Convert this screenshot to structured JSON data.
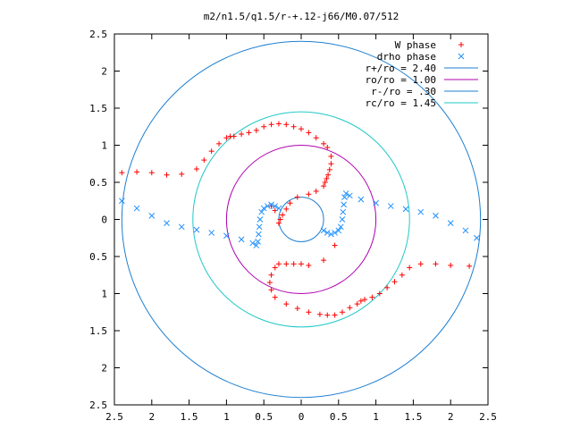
{
  "chart_data": {
    "type": "scatter",
    "title": "m2/n1.5/q1.5/r-+.12-j66/M0.07/512",
    "xlabel": "",
    "ylabel": "",
    "xlim": [
      -2.5,
      2.5
    ],
    "ylim": [
      -2.5,
      2.5
    ],
    "x_ticks": [
      -2.5,
      -2,
      -1.5,
      -1,
      -0.5,
      0,
      0.5,
      1,
      1.5,
      2,
      2.5
    ],
    "y_ticks": [
      -2.5,
      -2,
      -1.5,
      -1,
      -0.5,
      0,
      0.5,
      1,
      1.5,
      2,
      2.5
    ],
    "x_tick_labels": [
      "2.5",
      "2",
      "1.5",
      "1",
      "0.5",
      "0",
      "0.5",
      "1",
      "1.5",
      "2",
      "2.5"
    ],
    "y_tick_labels": [
      "2.5",
      "2",
      "1.5",
      "1",
      "0.5",
      "0",
      "0.5",
      "1",
      "1.5",
      "2",
      "2.5"
    ],
    "grid": false,
    "legend_position": "top-right",
    "series": [
      {
        "name": "W phase",
        "marker": "+",
        "color": "#ff0000",
        "x": [
          -2.4,
          -2.2,
          -2.0,
          -1.8,
          -1.6,
          -1.4,
          -1.3,
          -1.2,
          -1.1,
          -1.0,
          -0.95,
          -0.9,
          -0.8,
          -0.7,
          -0.6,
          -0.5,
          -0.4,
          -0.3,
          -0.2,
          -0.1,
          0.0,
          0.1,
          0.2,
          0.3,
          0.35,
          0.4,
          0.4,
          0.38,
          0.36,
          0.34,
          0.32,
          0.3,
          0.2,
          0.1,
          -0.05,
          -0.15,
          -0.2,
          -0.25,
          -0.28,
          -0.3,
          -0.35,
          -0.4,
          2.25,
          2.0,
          1.8,
          1.6,
          1.45,
          1.35,
          1.25,
          1.15,
          1.05,
          0.95,
          0.85,
          0.8,
          0.75,
          0.65,
          0.55,
          0.45,
          0.35,
          0.25,
          0.1,
          -0.05,
          -0.2,
          -0.35,
          -0.4,
          -0.42,
          -0.4,
          -0.35,
          -0.3,
          -0.2,
          -0.1,
          0.0,
          0.1,
          0.3,
          0.45
        ],
        "y": [
          0.63,
          0.64,
          0.63,
          0.6,
          0.61,
          0.68,
          0.8,
          0.92,
          1.02,
          1.1,
          1.12,
          1.12,
          1.15,
          1.17,
          1.2,
          1.25,
          1.28,
          1.29,
          1.28,
          1.25,
          1.22,
          1.17,
          1.1,
          1.02,
          0.97,
          0.85,
          0.75,
          0.67,
          0.6,
          0.55,
          0.5,
          0.45,
          0.38,
          0.34,
          0.3,
          0.22,
          0.14,
          0.06,
          0.0,
          -0.05,
          0.12,
          0.18,
          -0.63,
          -0.62,
          -0.6,
          -0.6,
          -0.65,
          -0.75,
          -0.84,
          -0.92,
          -1.0,
          -1.05,
          -1.08,
          -1.1,
          -1.14,
          -1.19,
          -1.25,
          -1.29,
          -1.29,
          -1.28,
          -1.25,
          -1.2,
          -1.14,
          -1.05,
          -0.95,
          -0.85,
          -0.75,
          -0.65,
          -0.6,
          -0.6,
          -0.6,
          -0.6,
          -0.62,
          -0.55,
          -0.35
        ]
      },
      {
        "name": "drho phase",
        "marker": "x",
        "color": "#1e90ff",
        "x": [
          -2.4,
          -2.2,
          -2.0,
          -1.8,
          -1.6,
          -1.4,
          -1.2,
          -1.0,
          -0.8,
          -0.65,
          -0.6,
          -0.58,
          -0.57,
          -0.56,
          -0.55,
          -0.53,
          -0.5,
          -0.45,
          -0.4,
          -0.35,
          -0.3,
          2.35,
          2.2,
          2.0,
          1.8,
          1.6,
          1.4,
          1.2,
          1.0,
          0.8,
          0.65,
          0.6,
          0.58,
          0.57,
          0.56,
          0.55,
          0.53,
          0.5,
          0.45,
          0.4,
          0.35,
          0.3
        ],
        "y": [
          0.25,
          0.15,
          0.05,
          -0.05,
          -0.1,
          -0.14,
          -0.18,
          -0.22,
          -0.27,
          -0.32,
          -0.35,
          -0.3,
          -0.2,
          -0.1,
          0.0,
          0.1,
          0.15,
          0.18,
          0.2,
          0.18,
          0.15,
          -0.25,
          -0.15,
          -0.05,
          0.05,
          0.1,
          0.14,
          0.18,
          0.22,
          0.27,
          0.32,
          0.35,
          0.3,
          0.2,
          0.1,
          0.0,
          -0.1,
          -0.15,
          -0.18,
          -0.2,
          -0.18,
          -0.15
        ]
      },
      {
        "name": "r+/ro = 2.40",
        "type": "circle",
        "r": 2.4,
        "color": "#1e7fd0"
      },
      {
        "name": "ro/ro = 1.00",
        "type": "circle",
        "r": 1.0,
        "color": "#b000b0"
      },
      {
        "name": "r-/ro = .30",
        "type": "circle",
        "r": 0.3,
        "color": "#1e7fd0"
      },
      {
        "name": "rc/ro = 1.45",
        "type": "circle",
        "r": 1.45,
        "color": "#20c8c8"
      }
    ]
  }
}
